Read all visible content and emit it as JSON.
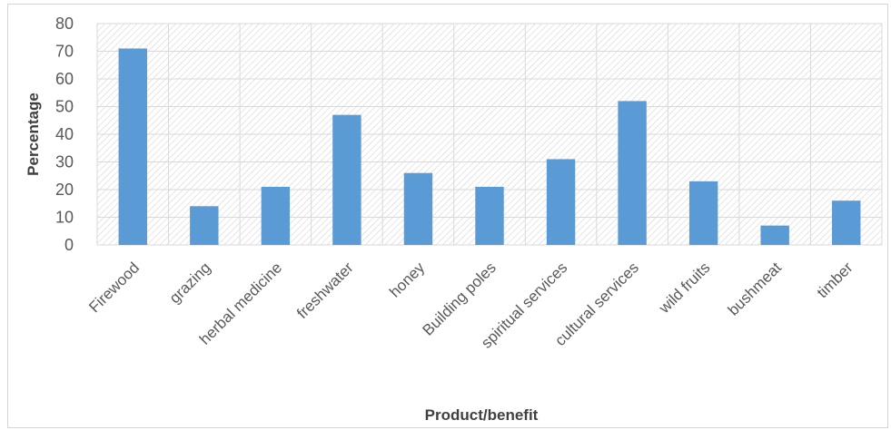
{
  "chart_data": {
    "type": "bar",
    "title": "",
    "xlabel": "Product/benefit",
    "ylabel": "Percentage",
    "ylim": [
      0,
      80
    ],
    "yticks": [
      0,
      10,
      20,
      30,
      40,
      50,
      60,
      70,
      80
    ],
    "grid": true,
    "legend": "none",
    "categories": [
      "Firewood",
      "grazing",
      "herbal medicine",
      "freshwater",
      "honey",
      "Building poles",
      "spiritual services",
      "cultural services",
      "wild fruits",
      "bushmeat",
      "timber"
    ],
    "values": [
      71,
      14,
      21,
      47,
      26,
      21,
      31,
      52,
      23,
      7,
      16
    ],
    "colors": {
      "bar": "#5b9bd5",
      "grid": "#d9d9d9",
      "plot_hatch": "#d0d0d0",
      "text": "#595959"
    }
  }
}
